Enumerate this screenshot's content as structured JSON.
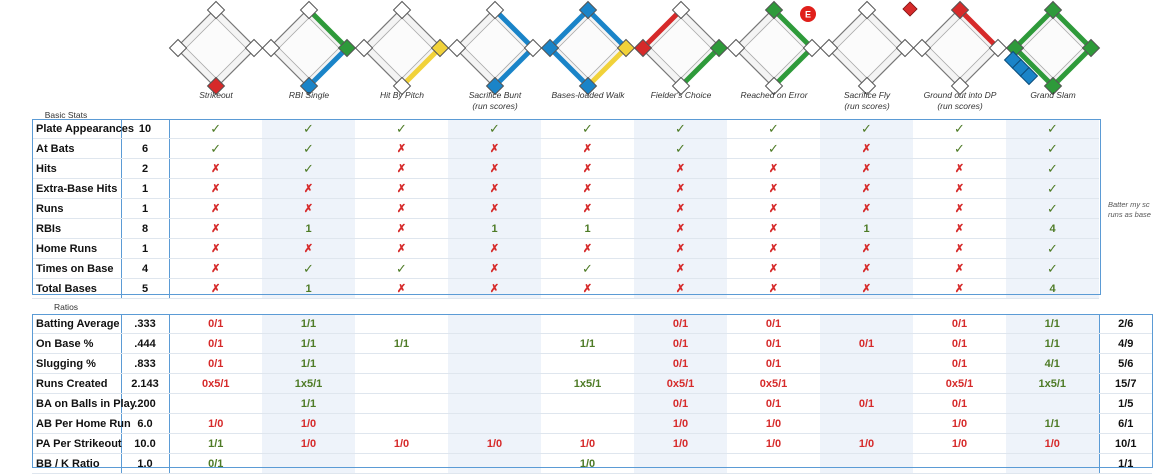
{
  "plays": [
    {
      "name": "Strikeout",
      "sub": "",
      "bases": [],
      "runs": [],
      "badge": false,
      "corner": false,
      "slam": false,
      "colors": {
        "home": "#d62a2a"
      }
    },
    {
      "name": "RBI Single",
      "sub": "",
      "colors": {
        "home": "#1a84c8",
        "first": "#2e9a3a",
        "lines": [
          [
            "home",
            "first",
            "#1a84c8"
          ],
          [
            "first",
            "second",
            "#2e9a3a"
          ]
        ]
      }
    },
    {
      "name": "Hit By Pitch",
      "sub": "",
      "colors": {
        "first": "#f1d23a",
        "lines": [
          [
            "home",
            "first",
            "#f1d23a"
          ]
        ]
      }
    },
    {
      "name": "Sacrifice Bunt",
      "sub": "(run scores)",
      "colors": {
        "home": "#1a84c8",
        "lines": [
          [
            "first",
            "second",
            "#1a84c8"
          ],
          [
            "home",
            "first",
            "#1a84c8"
          ]
        ]
      }
    },
    {
      "name": "Bases-loaded Walk",
      "sub": "",
      "colors": {
        "home": "#1a84c8",
        "first": "#f1d23a",
        "second": "#1a84c8",
        "third": "#1a84c8",
        "lines": [
          [
            "third",
            "second",
            "#1a84c8"
          ],
          [
            "second",
            "first",
            "#1a84c8"
          ],
          [
            "home",
            "first",
            "#f1d23a"
          ],
          [
            "third",
            "home",
            "#1a84c8"
          ]
        ]
      }
    },
    {
      "name": "Fielder's Choice",
      "sub": "",
      "colors": {
        "third": "#d62a2a",
        "first": "#2e9a3a",
        "lines": [
          [
            "third",
            "second",
            "#d62a2a"
          ],
          [
            "home",
            "first",
            "#2e9a3a"
          ]
        ]
      }
    },
    {
      "name": "Reached on Error",
      "sub": "",
      "colors": {
        "second": "#2e9a3a",
        "lines": [
          [
            "second",
            "first",
            "#2e9a3a"
          ],
          [
            "home",
            "first",
            "#2e9a3a"
          ]
        ]
      },
      "badge": "E"
    },
    {
      "name": "Sacrifice Fly",
      "sub": "(run scores)",
      "colors": {},
      "corner": true
    },
    {
      "name": "Ground out into DP",
      "sub": "(run scores)",
      "colors": {
        "second": "#d62a2a",
        "lines": [
          [
            "second",
            "first",
            "#d62a2a"
          ]
        ]
      }
    },
    {
      "name": "Grand Slam",
      "sub": "",
      "colors": {
        "second": "#2e9a3a",
        "first": "#2e9a3a",
        "third": "#2e9a3a",
        "home": "#2e9a3a",
        "lines": [
          [
            "home",
            "first",
            "#2e9a3a"
          ],
          [
            "first",
            "second",
            "#2e9a3a"
          ],
          [
            "second",
            "third",
            "#2e9a3a"
          ],
          [
            "third",
            "home",
            "#2e9a3a"
          ]
        ]
      },
      "slam": true
    }
  ],
  "basic_title": "Basic Stats",
  "ratios_title": "Ratios",
  "basic_rows": [
    {
      "label": "Plate Appearances",
      "total": "10",
      "cells": [
        "✓",
        "✓",
        "✓",
        "✓",
        "✓",
        "✓",
        "✓",
        "✓",
        "✓",
        "✓"
      ]
    },
    {
      "label": "At Bats",
      "total": "6",
      "cells": [
        "✓",
        "✓",
        "✗",
        "✗",
        "✗",
        "✓",
        "✓",
        "✗",
        "✓",
        "✓"
      ]
    },
    {
      "label": "Hits",
      "total": "2",
      "cells": [
        "✗",
        "✓",
        "✗",
        "✗",
        "✗",
        "✗",
        "✗",
        "✗",
        "✗",
        "✓"
      ]
    },
    {
      "label": "Extra-Base Hits",
      "total": "1",
      "cells": [
        "✗",
        "✗",
        "✗",
        "✗",
        "✗",
        "✗",
        "✗",
        "✗",
        "✗",
        "✓"
      ]
    },
    {
      "label": "Runs",
      "total": "1",
      "cells": [
        "✗",
        "✗",
        "✗",
        "✗",
        "✗",
        "✗",
        "✗",
        "✗",
        "✗",
        "✓"
      ]
    },
    {
      "label": "RBIs",
      "total": "8",
      "cells": [
        "✗",
        "1",
        "✗",
        "1",
        "1",
        "✗",
        "✗",
        "1",
        "✗",
        "4"
      ]
    },
    {
      "label": "Home Runs",
      "total": "1",
      "cells": [
        "✗",
        "✗",
        "✗",
        "✗",
        "✗",
        "✗",
        "✗",
        "✗",
        "✗",
        "✓"
      ]
    },
    {
      "label": "Times on Base",
      "total": "4",
      "cells": [
        "✗",
        "✓",
        "✓",
        "✗",
        "✓",
        "✗",
        "✗",
        "✗",
        "✗",
        "✓"
      ]
    },
    {
      "label": "Total Bases",
      "total": "5",
      "cells": [
        "✗",
        "1",
        "✗",
        "✗",
        "✗",
        "✗",
        "✗",
        "✗",
        "✗",
        "4"
      ]
    }
  ],
  "ratio_rows": [
    {
      "label": "Batting Average",
      "total": ".333",
      "cells": [
        "0/1",
        "1/1",
        "",
        "",
        "",
        "0/1",
        "0/1",
        "",
        "0/1",
        "1/1"
      ],
      "colors": [
        "r",
        "g",
        "",
        "",
        "",
        "r",
        "r",
        "",
        "r",
        "g"
      ],
      "end": "2/6"
    },
    {
      "label": "On Base %",
      "total": ".444",
      "cells": [
        "0/1",
        "1/1",
        "1/1",
        "",
        "1/1",
        "0/1",
        "0/1",
        "0/1",
        "0/1",
        "1/1"
      ],
      "colors": [
        "r",
        "g",
        "g",
        "",
        "g",
        "r",
        "r",
        "r",
        "r",
        "g"
      ],
      "end": "4/9"
    },
    {
      "label": "Slugging %",
      "total": ".833",
      "cells": [
        "0/1",
        "1/1",
        "",
        "",
        "",
        "0/1",
        "0/1",
        "",
        "0/1",
        "4/1"
      ],
      "colors": [
        "r",
        "g",
        "",
        "",
        "",
        "r",
        "r",
        "",
        "r",
        "g"
      ],
      "end": "5/6"
    },
    {
      "label": "Runs Created",
      "total": "2.143",
      "cells": [
        "0x5/1",
        "1x5/1",
        "",
        "",
        "1x5/1",
        "0x5/1",
        "0x5/1",
        "",
        "0x5/1",
        "1x5/1"
      ],
      "colors": [
        "r",
        "g",
        "",
        "",
        "g",
        "r",
        "r",
        "",
        "r",
        "g"
      ],
      "end": "15/7"
    },
    {
      "label": "BA on Balls in Play",
      "total": ".200",
      "cells": [
        "",
        "1/1",
        "",
        "",
        "",
        "0/1",
        "0/1",
        "0/1",
        "0/1",
        ""
      ],
      "colors": [
        "",
        "g",
        "",
        "",
        "",
        "r",
        "r",
        "r",
        "r",
        ""
      ],
      "end": "1/5"
    },
    {
      "label": "AB Per Home Run",
      "total": "6.0",
      "cells": [
        "1/0",
        "1/0",
        "",
        "",
        "",
        "1/0",
        "1/0",
        "",
        "1/0",
        "1/1"
      ],
      "colors": [
        "r",
        "r",
        "",
        "",
        "",
        "r",
        "r",
        "",
        "r",
        "g"
      ],
      "end": "6/1"
    },
    {
      "label": "PA Per Strikeout",
      "total": "10.0",
      "cells": [
        "1/1",
        "1/0",
        "1/0",
        "1/0",
        "1/0",
        "1/0",
        "1/0",
        "1/0",
        "1/0",
        "1/0"
      ],
      "colors": [
        "g",
        "r",
        "r",
        "r",
        "r",
        "r",
        "r",
        "r",
        "r",
        "r"
      ],
      "end": "10/1"
    },
    {
      "label": "BB / K Ratio",
      "total": "1.0",
      "cells": [
        "0/1",
        "",
        "",
        "",
        "1/0",
        "",
        "",
        "",
        "",
        ""
      ],
      "colors": [
        "g",
        "",
        "",
        "",
        "g",
        "",
        "",
        "",
        "",
        ""
      ],
      "end": "1/1"
    }
  ],
  "side_note_1": "Batter my sc",
  "side_note_2": "runs as base"
}
